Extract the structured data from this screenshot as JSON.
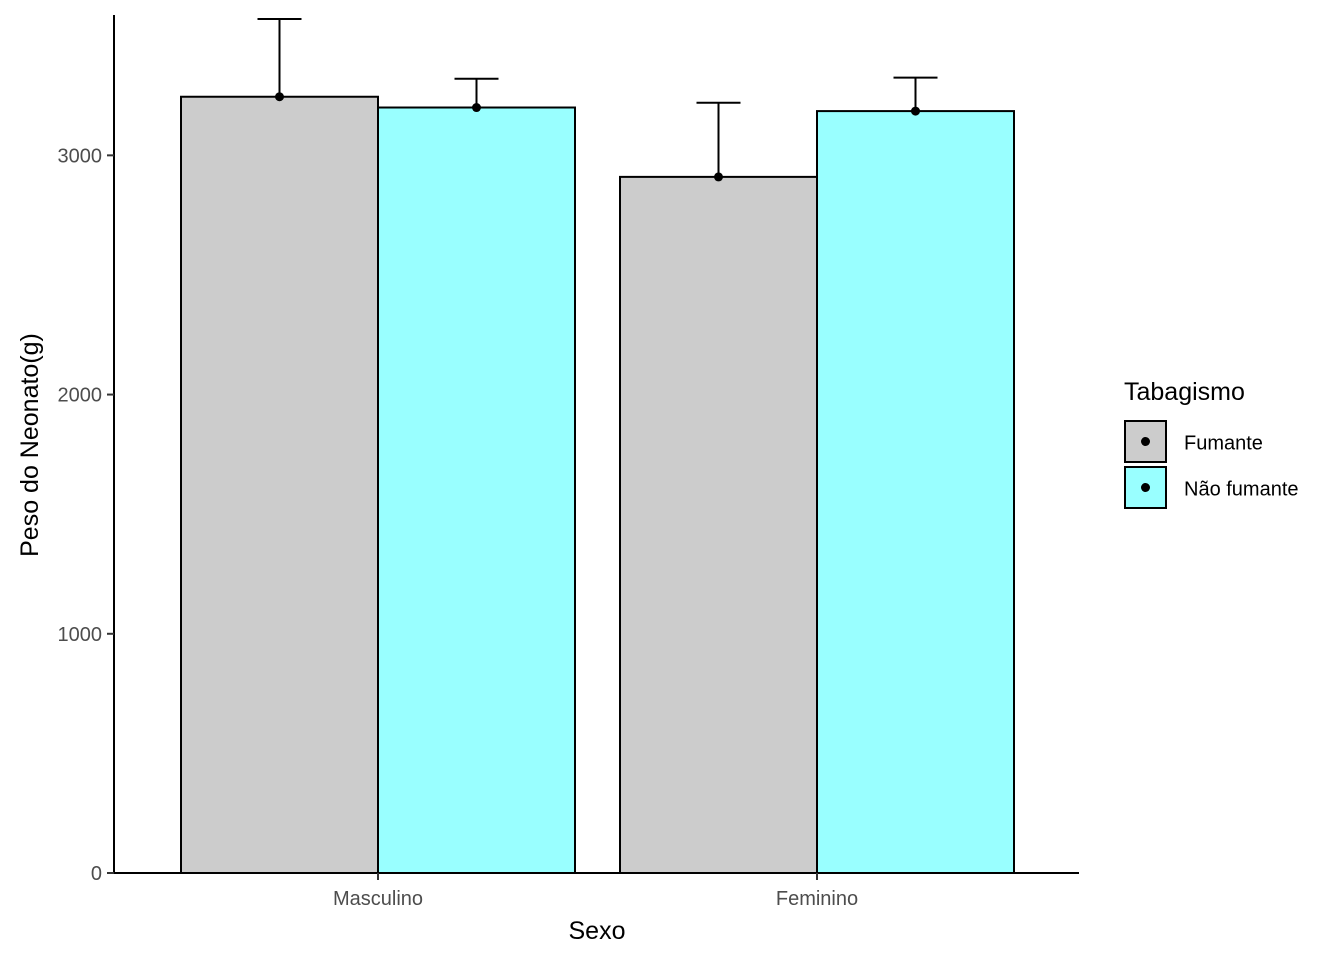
{
  "chart_data": {
    "type": "bar",
    "title": "",
    "xlabel": "Sexo",
    "ylabel": "Peso do Neonato(g)",
    "categories": [
      "Masculino",
      "Feminino"
    ],
    "series": [
      {
        "name": "Fumante",
        "color": "#cccccc",
        "values": [
          3245,
          2910
        ],
        "error_upper": [
          3570,
          3220
        ]
      },
      {
        "name": "Não fumante",
        "color": "#99ffff",
        "values": [
          3200,
          3185
        ],
        "error_upper": [
          3320,
          3325
        ]
      }
    ],
    "ylim": [
      0,
      3570
    ],
    "yticks": [
      "0",
      "1000",
      "2000",
      "3000"
    ],
    "grid": false,
    "legend": {
      "title": "Tabagismo",
      "position": "right"
    }
  }
}
